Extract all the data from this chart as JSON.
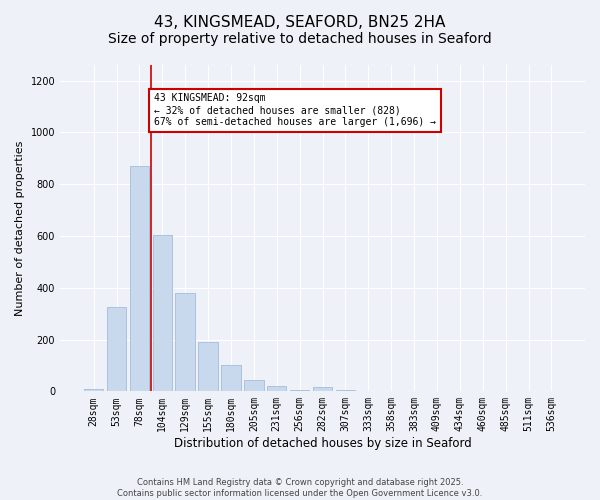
{
  "title": "43, KINGSMEAD, SEAFORD, BN25 2HA",
  "subtitle": "Size of property relative to detached houses in Seaford",
  "xlabel": "Distribution of detached houses by size in Seaford",
  "ylabel": "Number of detached properties",
  "bar_labels": [
    "28sqm",
    "53sqm",
    "78sqm",
    "104sqm",
    "129sqm",
    "155sqm",
    "180sqm",
    "205sqm",
    "231sqm",
    "256sqm",
    "282sqm",
    "307sqm",
    "333sqm",
    "358sqm",
    "383sqm",
    "409sqm",
    "434sqm",
    "460sqm",
    "485sqm",
    "511sqm",
    "536sqm"
  ],
  "bar_values": [
    10,
    325,
    870,
    605,
    378,
    190,
    103,
    43,
    22,
    5,
    18,
    5,
    0,
    0,
    0,
    0,
    0,
    0,
    0,
    0,
    0
  ],
  "bar_color": "#c8d9ee",
  "bar_edgecolor": "#9ab4d4",
  "vline_x": 2.5,
  "vline_color": "#cc0000",
  "ylim": [
    0,
    1260
  ],
  "yticks": [
    0,
    200,
    400,
    600,
    800,
    1000,
    1200
  ],
  "annotation_title": "43 KINGSMEAD: 92sqm",
  "annotation_line1": "← 32% of detached houses are smaller (828)",
  "annotation_line2": "67% of semi-detached houses are larger (1,696) →",
  "annotation_box_color": "#ffffff",
  "annotation_box_edgecolor": "#cc0000",
  "footer1": "Contains HM Land Registry data © Crown copyright and database right 2025.",
  "footer2": "Contains public sector information licensed under the Open Government Licence v3.0.",
  "background_color": "#eef2f8",
  "plot_background": "#eef2f8",
  "grid_color": "#ffffff",
  "title_fontsize": 11,
  "xlabel_fontsize": 8.5,
  "ylabel_fontsize": 8,
  "tick_fontsize": 7,
  "footer_fontsize": 6,
  "annotation_fontsize": 7
}
